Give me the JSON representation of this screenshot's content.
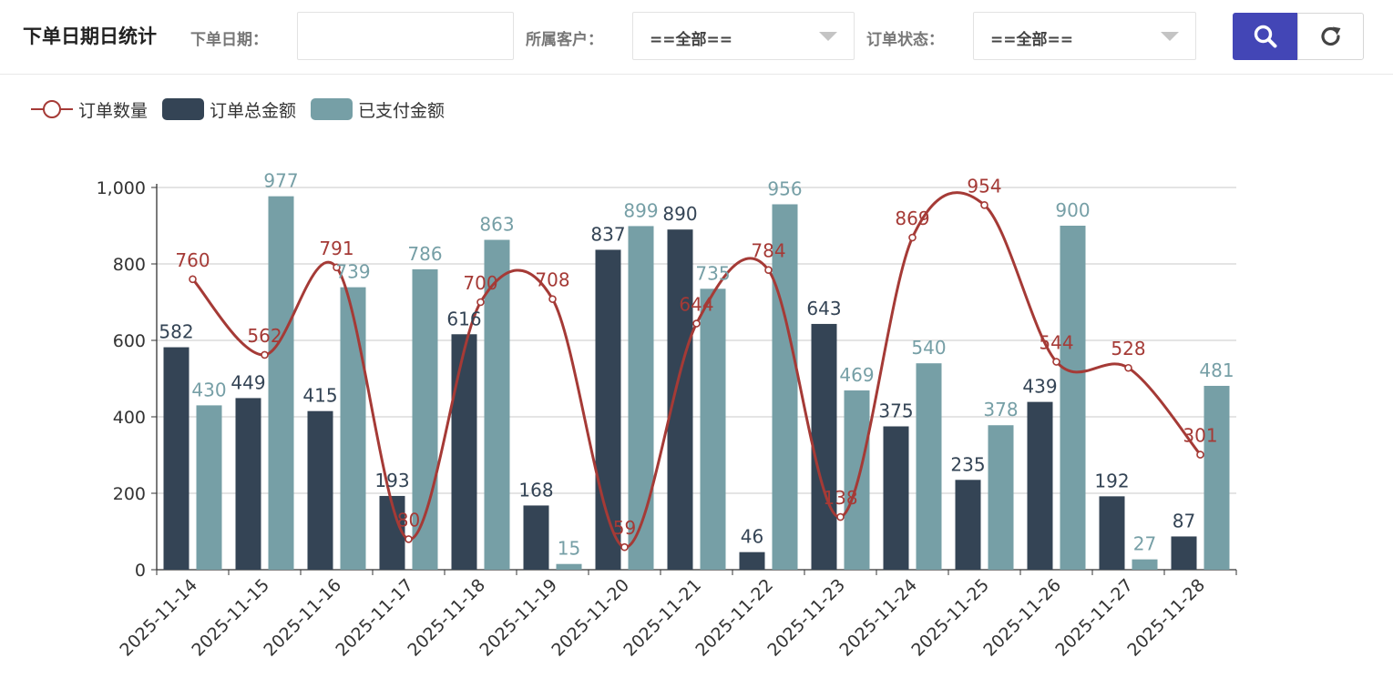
{
  "toolbar": {
    "title": "下单日期日统计",
    "date_label": "下单日期：",
    "date_value": "",
    "customer_label": "所属客户：",
    "customer_value": "==全部==",
    "status_label": "订单状态：",
    "status_value": "==全部=="
  },
  "icons": {
    "search": "search-icon",
    "refresh": "refresh-icon"
  },
  "colors": {
    "accent": "#4346b6",
    "line": "#a53a36",
    "bar_total": "#344455",
    "bar_paid": "#769fa6"
  },
  "chart_data": {
    "type": "bar",
    "categories": [
      "2025-11-14",
      "2025-11-15",
      "2025-11-16",
      "2025-11-17",
      "2025-11-18",
      "2025-11-19",
      "2025-11-20",
      "2025-11-21",
      "2025-11-22",
      "2025-11-23",
      "2025-11-24",
      "2025-11-25",
      "2025-11-26",
      "2025-11-27",
      "2025-11-28"
    ],
    "series": [
      {
        "name": "订单数量",
        "type": "line",
        "smooth": true,
        "color": "#a53a36",
        "values": [
          760,
          562,
          791,
          80,
          700,
          708,
          59,
          644,
          784,
          138,
          869,
          954,
          544,
          528,
          301
        ]
      },
      {
        "name": "订单总金额",
        "type": "bar",
        "color": "#344455",
        "values": [
          582,
          449,
          415,
          193,
          616,
          168,
          837,
          890,
          46,
          643,
          375,
          235,
          439,
          192,
          87
        ]
      },
      {
        "name": "已支付金额",
        "type": "bar",
        "color": "#769fa6",
        "values": [
          430,
          977,
          739,
          786,
          863,
          15,
          899,
          735,
          956,
          469,
          540,
          378,
          900,
          27,
          481
        ]
      }
    ],
    "yticks": [
      "0",
      "200",
      "400",
      "600",
      "800",
      "1,000"
    ],
    "ylim": [
      0,
      1000
    ],
    "grid": true,
    "legend_position": "top-left",
    "data_labels": true,
    "xlabel_rotation": 45
  }
}
